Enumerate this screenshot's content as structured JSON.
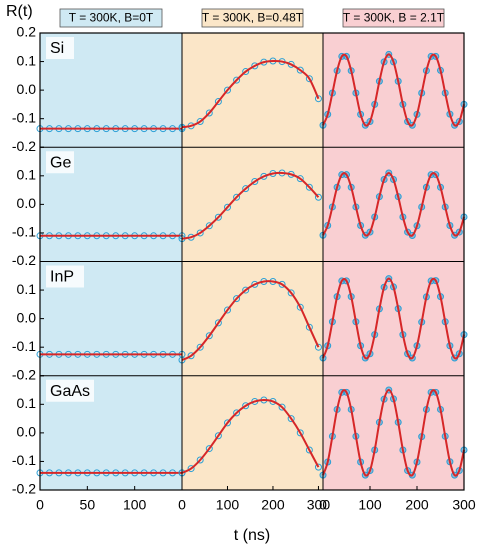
{
  "chart_data": {
    "type": "line",
    "ylabel": "R(t)",
    "xlabel": "t (ns)",
    "ylim": [
      -0.2,
      0.2
    ],
    "yticks": [
      -0.2,
      -0.1,
      {
        "value": 0,
        "label": "0.0"
      },
      0.1,
      0.2
    ],
    "line_color": "#d62728",
    "marker_color": "#2a9fd6",
    "columns": [
      {
        "title": "T = 300K, B=0T",
        "color": "#cfe9f3",
        "xlim": [
          0,
          150
        ],
        "xticks": [
          0,
          50,
          100
        ],
        "x": [
          0,
          10,
          20,
          30,
          40,
          50,
          60,
          70,
          80,
          90,
          100,
          110,
          120,
          130,
          140,
          150
        ]
      },
      {
        "title": "T = 300K, B=0.48T",
        "color": "#fbe6c8",
        "xlim": [
          0,
          310
        ],
        "xticks": [
          0,
          100,
          200,
          300
        ],
        "x": [
          0,
          20,
          40,
          60,
          80,
          100,
          120,
          140,
          160,
          180,
          200,
          220,
          240,
          260,
          280,
          300
        ]
      },
      {
        "title": "T = 300K, B = 2.1T",
        "color": "#f9cfd2",
        "xlim": [
          0,
          300
        ],
        "xticks": [
          0,
          100,
          200,
          300
        ],
        "x": [
          0,
          10,
          20,
          30,
          40,
          50,
          60,
          70,
          80,
          90,
          100,
          110,
          120,
          130,
          140,
          150,
          160,
          170,
          180,
          190,
          200,
          210,
          220,
          230,
          240,
          250,
          260,
          270,
          280,
          290,
          300
        ]
      }
    ],
    "rows": [
      {
        "label": "Si",
        "panels": [
          {
            "values": [
              -0.135,
              -0.135,
              -0.135,
              -0.135,
              -0.135,
              -0.135,
              -0.135,
              -0.135,
              -0.135,
              -0.135,
              -0.135,
              -0.135,
              -0.135,
              -0.135,
              -0.135,
              -0.135
            ]
          },
          {
            "values": [
              -0.13,
              -0.125,
              -0.11,
              -0.08,
              -0.04,
              0.0,
              0.035,
              0.065,
              0.085,
              0.098,
              0.102,
              0.1,
              0.09,
              0.07,
              0.04,
              -0.03
            ]
          },
          {
            "values": [
              -0.123,
              -0.085,
              -0.01,
              0.068,
              0.118,
              0.118,
              0.068,
              -0.01,
              -0.085,
              -0.123,
              -0.11,
              -0.05,
              0.031,
              0.099,
              0.125,
              0.099,
              0.031,
              -0.05,
              -0.11,
              -0.123,
              -0.085,
              -0.01,
              0.068,
              0.118,
              0.118,
              0.069,
              -0.01,
              -0.084,
              -0.123,
              -0.11,
              -0.05
            ]
          }
        ]
      },
      {
        "label": "Ge",
        "panels": [
          {
            "values": [
              -0.11,
              -0.11,
              -0.11,
              -0.11,
              -0.11,
              -0.11,
              -0.11,
              -0.11,
              -0.11,
              -0.11,
              -0.11,
              -0.11,
              -0.11,
              -0.11,
              -0.11,
              -0.11
            ]
          },
          {
            "values": [
              -0.12,
              -0.115,
              -0.1,
              -0.075,
              -0.045,
              -0.01,
              0.025,
              0.055,
              0.08,
              0.098,
              0.108,
              0.11,
              0.105,
              0.09,
              0.06,
              0.025
            ]
          },
          {
            "values": [
              -0.108,
              -0.074,
              -0.009,
              0.06,
              0.104,
              0.104,
              0.06,
              -0.009,
              -0.074,
              -0.108,
              -0.097,
              -0.044,
              0.027,
              0.087,
              0.11,
              0.087,
              0.027,
              -0.044,
              -0.097,
              -0.109,
              -0.075,
              -0.009,
              0.06,
              0.104,
              0.104,
              0.06,
              -0.009,
              -0.074,
              -0.108,
              -0.097,
              -0.044
            ]
          }
        ]
      },
      {
        "label": "InP",
        "panels": [
          {
            "values": [
              -0.125,
              -0.125,
              -0.125,
              -0.125,
              -0.125,
              -0.125,
              -0.125,
              -0.125,
              -0.125,
              -0.125,
              -0.125,
              -0.125,
              -0.125,
              -0.125,
              -0.125,
              -0.125
            ]
          },
          {
            "values": [
              -0.145,
              -0.13,
              -0.1,
              -0.06,
              -0.015,
              0.03,
              0.07,
              0.1,
              0.12,
              0.13,
              0.13,
              0.12,
              0.09,
              0.04,
              -0.03,
              -0.1
            ]
          },
          {
            "values": [
              -0.138,
              -0.095,
              -0.011,
              0.077,
              0.132,
              0.132,
              0.077,
              -0.011,
              -0.095,
              -0.138,
              -0.123,
              -0.056,
              0.034,
              0.11,
              0.14,
              0.111,
              0.035,
              -0.056,
              -0.123,
              -0.138,
              -0.095,
              -0.012,
              0.076,
              0.132,
              0.133,
              0.077,
              -0.011,
              -0.095,
              -0.138,
              -0.123,
              -0.056
            ]
          }
        ]
      },
      {
        "label": "GaAs",
        "panels": [
          {
            "values": [
              -0.14,
              -0.14,
              -0.14,
              -0.14,
              -0.14,
              -0.14,
              -0.14,
              -0.14,
              -0.14,
              -0.14,
              -0.14,
              -0.14,
              -0.14,
              -0.14,
              -0.14,
              -0.14
            ]
          },
          {
            "values": [
              -0.14,
              -0.125,
              -0.095,
              -0.055,
              -0.01,
              0.035,
              0.07,
              0.095,
              0.11,
              0.115,
              0.11,
              0.09,
              0.05,
              0.0,
              -0.06,
              -0.12
            ]
          },
          {
            "values": [
              -0.148,
              -0.102,
              -0.012,
              0.082,
              0.142,
              0.142,
              0.082,
              -0.012,
              -0.102,
              -0.148,
              -0.132,
              -0.06,
              0.037,
              0.118,
              0.15,
              0.119,
              0.037,
              -0.06,
              -0.132,
              -0.148,
              -0.102,
              -0.013,
              0.082,
              0.142,
              0.142,
              0.082,
              -0.012,
              -0.101,
              -0.148,
              -0.132,
              -0.06
            ]
          }
        ]
      }
    ]
  }
}
